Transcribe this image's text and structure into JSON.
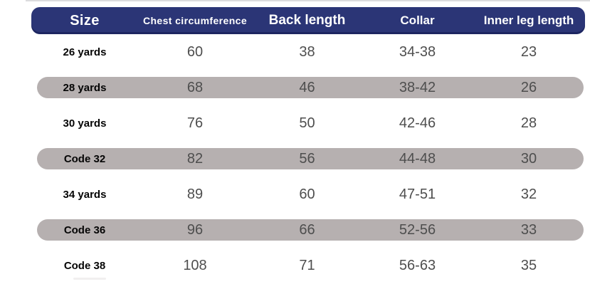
{
  "table": {
    "columns": [
      {
        "key": "size",
        "label": "Size"
      },
      {
        "key": "chest",
        "label": "Chest circumference"
      },
      {
        "key": "back",
        "label": "Back length"
      },
      {
        "key": "collar",
        "label": "Collar"
      },
      {
        "key": "inner",
        "label": "Inner leg length"
      }
    ],
    "rows": [
      {
        "size": "26 yards",
        "chest": "60",
        "back": "38",
        "collar": "34-38",
        "inner": "23"
      },
      {
        "size": "28 yards",
        "chest": "68",
        "back": "46",
        "collar": "38-42",
        "inner": "26"
      },
      {
        "size": "30 yards",
        "chest": "76",
        "back": "50",
        "collar": "42-46",
        "inner": "28"
      },
      {
        "size": "Code 32",
        "chest": "82",
        "back": "56",
        "collar": "44-48",
        "inner": "30"
      },
      {
        "size": "34 yards",
        "chest": "89",
        "back": "60",
        "collar": "47-51",
        "inner": "32"
      },
      {
        "size": "Code 36",
        "chest": "96",
        "back": "66",
        "collar": "52-56",
        "inner": "33"
      },
      {
        "size": "Code 38",
        "chest": "108",
        "back": "71",
        "collar": "56-63",
        "inner": "35"
      }
    ],
    "striped_row_indexes": [
      1,
      3,
      5
    ]
  },
  "colors": {
    "header_bg": "#2b3576",
    "header_text": "#ffffff",
    "stripe_bg": "#b6b0b0",
    "size_text": "#050505",
    "value_text": "#4e4e4e",
    "background": "#ffffff"
  },
  "chart_data": {
    "type": "table",
    "title": "",
    "columns": [
      "Size",
      "Chest circumference",
      "Back length",
      "Collar",
      "Inner leg length"
    ],
    "rows": [
      [
        "26 yards",
        60,
        38,
        "34-38",
        23
      ],
      [
        "28 yards",
        68,
        46,
        "38-42",
        26
      ],
      [
        "30 yards",
        76,
        50,
        "42-46",
        28
      ],
      [
        "Code 32",
        82,
        56,
        "44-48",
        30
      ],
      [
        "34 yards",
        89,
        60,
        "47-51",
        32
      ],
      [
        "Code 36",
        96,
        66,
        "52-56",
        33
      ],
      [
        "Code 38",
        108,
        71,
        "56-63",
        35
      ]
    ]
  }
}
